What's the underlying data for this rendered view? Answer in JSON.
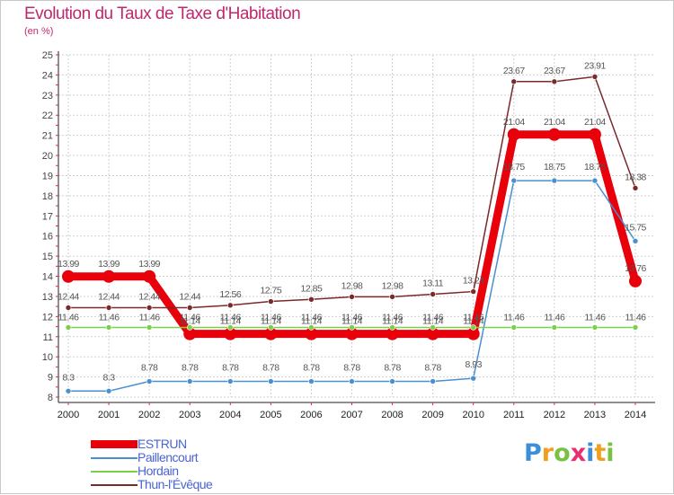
{
  "title": "Evolution du Taux de Taxe d'Habitation",
  "unit_label": "(en %)",
  "logo": {
    "letters": [
      {
        "char": "P",
        "color": "#3b8fd8"
      },
      {
        "char": "r",
        "color": "#f0a020"
      },
      {
        "char": "o",
        "color": "#7ac143"
      },
      {
        "char": "x",
        "color": "#e83070"
      },
      {
        "char": "i",
        "color": "#3b8fd8"
      },
      {
        "char": "t",
        "color": "#f0a020"
      },
      {
        "char": "i",
        "color": "#7ac143"
      }
    ]
  },
  "chart_data": {
    "type": "line",
    "title": "Evolution du Taux de Taxe d'Habitation",
    "ylabel": "(en %)",
    "xlabel": "",
    "x": [
      "2000",
      "2001",
      "2002",
      "2003",
      "2004",
      "2005",
      "2006",
      "2007",
      "2008",
      "2009",
      "2010",
      "2011",
      "2012",
      "2013",
      "2014"
    ],
    "ylim": [
      8,
      25
    ],
    "yticks": [
      8,
      9,
      10,
      11,
      12,
      13,
      14,
      15,
      16,
      17,
      18,
      19,
      20,
      21,
      22,
      23,
      24,
      25
    ],
    "grid": true,
    "legend_position": "bottom-left",
    "series": [
      {
        "name": "ESTRUN",
        "color": "#e8000b",
        "values": [
          13.99,
          13.99,
          13.99,
          11.14,
          11.14,
          11.14,
          11.14,
          11.14,
          11.14,
          11.14,
          11.14,
          21.04,
          21.04,
          21.04,
          13.76
        ],
        "labels": [
          "13.99",
          "13.99",
          "13.99",
          "11.14",
          "11.14",
          "11.14",
          "11.14",
          "11.14",
          "11.14",
          "11.14",
          "11.14",
          "21.04",
          "21.04",
          "21.04",
          "13.76"
        ]
      },
      {
        "name": "Paillencourt",
        "color": "#4a8fd0",
        "values": [
          8.3,
          8.3,
          8.78,
          8.78,
          8.78,
          8.78,
          8.78,
          8.78,
          8.78,
          8.78,
          8.93,
          18.75,
          18.75,
          18.75,
          15.75
        ],
        "labels": [
          "8.3",
          "8.3",
          "8.78",
          "8.78",
          "8.78",
          "8.78",
          "8.78",
          "8.78",
          "8.78",
          "8.78",
          "8.93",
          "18.75",
          "18.75",
          "18.75",
          "15.75"
        ]
      },
      {
        "name": "Hordain",
        "color": "#7ad04a",
        "values": [
          11.46,
          11.46,
          11.46,
          11.46,
          11.46,
          11.46,
          11.46,
          11.46,
          11.46,
          11.46,
          11.46,
          11.46,
          11.46,
          11.46,
          11.46
        ],
        "labels": [
          "11.46",
          "11.46",
          "11.46",
          "11.46",
          "11.46",
          "11.46",
          "11.46",
          "11.46",
          "11.46",
          "11.46",
          "11.46",
          "11.46",
          "11.46",
          "11.46",
          "11.46"
        ]
      },
      {
        "name": "Thun-l'Évêque",
        "color": "#7a2a2a",
        "values": [
          12.44,
          12.44,
          12.44,
          12.44,
          12.56,
          12.75,
          12.85,
          12.98,
          12.98,
          13.11,
          13.24,
          23.67,
          23.67,
          23.91,
          18.38
        ],
        "labels": [
          "12.44",
          "12.44",
          "12.44",
          "12.44",
          "12.56",
          "12.75",
          "12.85",
          "12.98",
          "12.98",
          "13.11",
          "13.24",
          "23.67",
          "23.67",
          "23.91",
          "18.38"
        ]
      }
    ]
  }
}
